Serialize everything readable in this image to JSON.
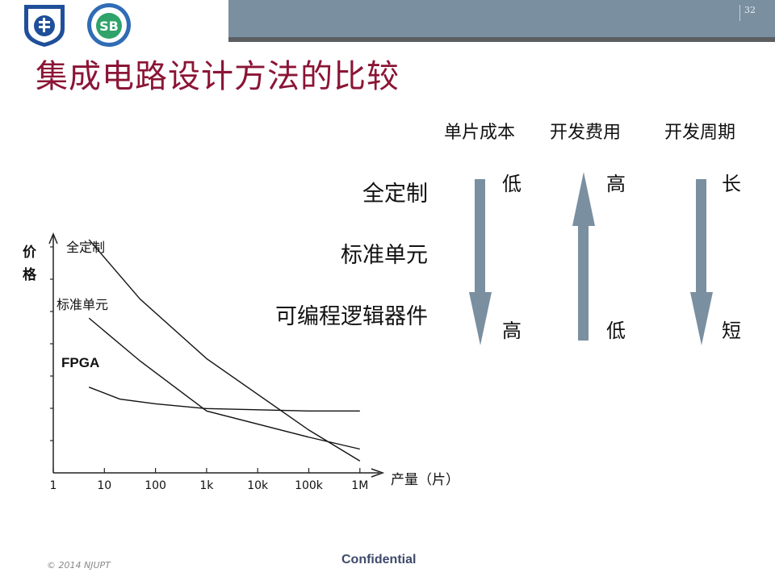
{
  "header": {
    "page_number": "32",
    "title": "集成电路设计方法的比较",
    "logos": [
      {
        "name": "university-seal",
        "alt": "南京邮电大学"
      },
      {
        "name": "school-logo",
        "alt": "SB"
      }
    ]
  },
  "comparison": {
    "columns": [
      "单片成本",
      "开发费用",
      "开发周期"
    ],
    "rows": [
      "全定制",
      "标准单元",
      "可编程逻辑器件"
    ],
    "arrows": [
      {
        "column": "单片成本",
        "direction": "down",
        "top_label": "低",
        "bottom_label": "高"
      },
      {
        "column": "开发费用",
        "direction": "up",
        "top_label": "高",
        "bottom_label": "低"
      },
      {
        "column": "开发周期",
        "direction": "down",
        "top_label": "长",
        "bottom_label": "短"
      }
    ],
    "arrow_color": "#7a8fa0"
  },
  "chart_data": {
    "type": "line",
    "ylabel": "价格",
    "xlabel": "产量（片）",
    "x_ticks": [
      "1",
      "10",
      "100",
      "1k",
      "10k",
      "100k",
      "1M"
    ],
    "x_scale": "log",
    "y_ticks_labeled": false,
    "series": [
      {
        "name": "全定制",
        "x": [
          5,
          50,
          1000,
          100000,
          1000000
        ],
        "y": [
          9.8,
          7.3,
          4.8,
          1.8,
          0.5
        ]
      },
      {
        "name": "标准单元",
        "x": [
          5,
          50,
          1000,
          100000,
          1000000
        ],
        "y": [
          6.5,
          4.7,
          2.6,
          1.5,
          1.0
        ]
      },
      {
        "name": "FPGA",
        "x": [
          5,
          20,
          100,
          1000,
          100000,
          1000000
        ],
        "y": [
          3.6,
          3.1,
          2.9,
          2.7,
          2.6,
          2.6
        ]
      }
    ]
  },
  "footer": {
    "copyright": "© 2014 NJUPT",
    "confidential": "Confidential"
  }
}
